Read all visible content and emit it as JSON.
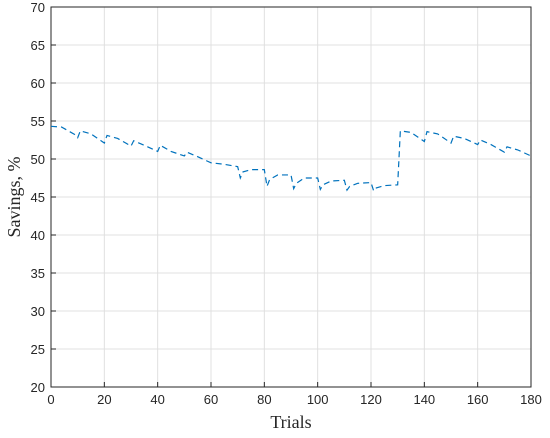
{
  "chart_data": {
    "type": "line",
    "xlabel": "Trials",
    "ylabel": "Savings, %",
    "x": [
      0,
      4,
      9,
      10,
      11,
      15,
      20,
      21,
      25,
      30,
      31,
      35,
      40,
      41,
      45,
      50,
      51,
      55,
      60,
      65,
      70,
      71,
      72,
      75,
      80,
      81,
      82,
      85,
      90,
      91,
      92,
      95,
      100,
      101,
      102,
      105,
      110,
      111,
      112,
      115,
      120,
      121,
      122,
      125,
      130,
      131,
      135,
      140,
      141,
      145,
      150,
      151,
      155,
      160,
      161,
      165,
      170,
      171,
      175,
      180
    ],
    "values": [
      54.3,
      54.2,
      53.2,
      52.8,
      53.7,
      53.3,
      52.1,
      53.1,
      52.7,
      51.7,
      52.4,
      51.8,
      51.0,
      51.8,
      51.0,
      50.4,
      50.9,
      50.3,
      49.5,
      49.3,
      49.0,
      47.5,
      48.3,
      48.6,
      48.6,
      46.4,
      47.3,
      47.9,
      47.9,
      46.1,
      46.8,
      47.5,
      47.5,
      46.0,
      46.6,
      47.1,
      47.2,
      45.9,
      46.4,
      46.8,
      46.9,
      45.8,
      46.2,
      46.5,
      46.6,
      53.7,
      53.5,
      52.3,
      53.6,
      53.3,
      52.1,
      53.0,
      52.7,
      51.9,
      52.5,
      51.9,
      50.9,
      51.6,
      51.2,
      50.4
    ],
    "color": "#0072bd",
    "line_style": "dashed",
    "xlim": [
      0,
      180
    ],
    "xticks": [
      0,
      20,
      40,
      60,
      80,
      100,
      120,
      140,
      160,
      180
    ],
    "ylim": [
      20,
      70
    ],
    "yticks": [
      20,
      25,
      30,
      35,
      40,
      45,
      50,
      55,
      60,
      65,
      70
    ],
    "grid": true
  }
}
